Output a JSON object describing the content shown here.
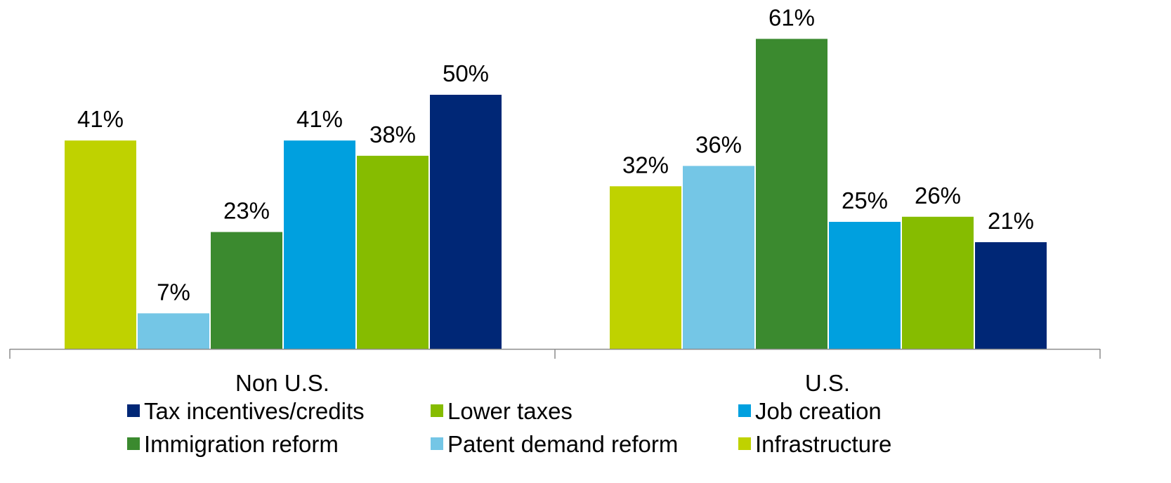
{
  "chart_data": {
    "type": "bar",
    "categories": [
      "Non U.S.",
      "U.S."
    ],
    "series": [
      {
        "name": "Infrastructure",
        "color": "#BFD200",
        "values": [
          41,
          32
        ]
      },
      {
        "name": "Patent demand reform",
        "color": "#74C6E6",
        "values": [
          7,
          36
        ]
      },
      {
        "name": "Immigration reform",
        "color": "#3B8A2F",
        "values": [
          23,
          61
        ]
      },
      {
        "name": "Job creation",
        "color": "#00A0DF",
        "values": [
          41,
          25
        ]
      },
      {
        "name": "Lower taxes",
        "color": "#86BC00",
        "values": [
          38,
          26
        ]
      },
      {
        "name": "Tax incentives/credits",
        "color": "#002776",
        "values": [
          50,
          21
        ]
      }
    ],
    "value_labels": [
      [
        "41%",
        "32%"
      ],
      [
        "7%",
        "36%"
      ],
      [
        "23%",
        "61%"
      ],
      [
        "41%",
        "25%"
      ],
      [
        "38%",
        "26%"
      ],
      [
        "50%",
        "21%"
      ]
    ],
    "legend_order": [
      "Tax incentives/credits",
      "Lower taxes",
      "Job creation",
      "Immigration reform",
      "Patent demand reform",
      "Infrastructure"
    ],
    "ylim": [
      0,
      61
    ],
    "grid": false,
    "legend_position": "bottom",
    "title": "",
    "xlabel": "",
    "ylabel": ""
  }
}
